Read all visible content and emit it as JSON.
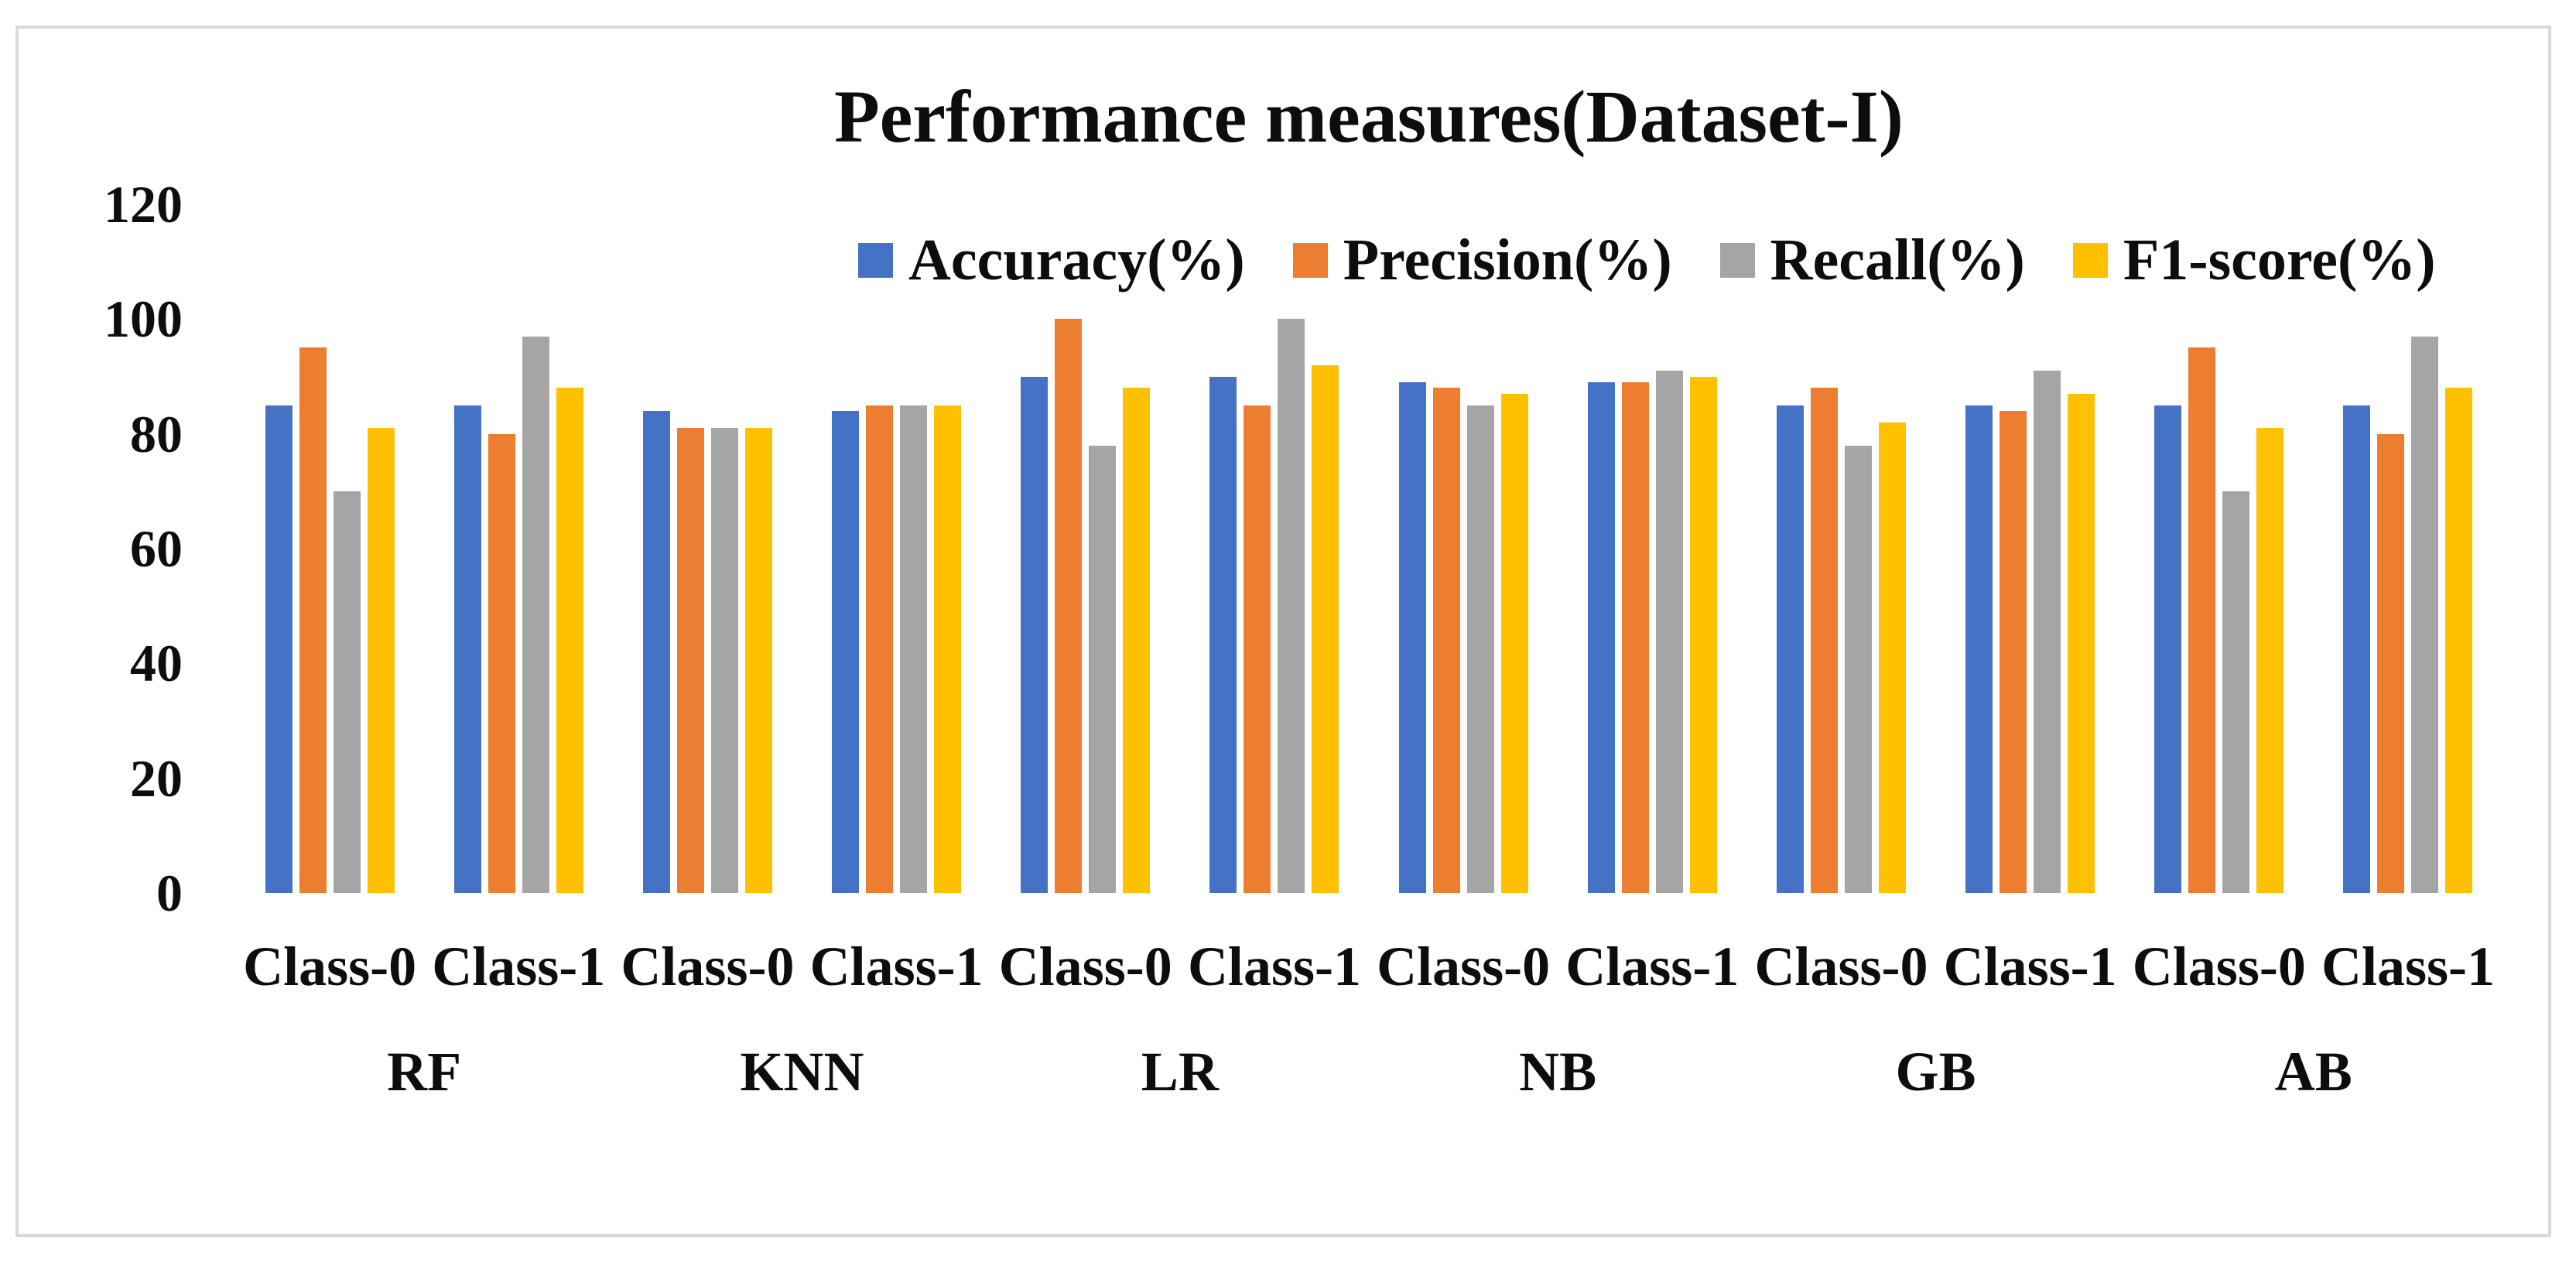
{
  "figure": {
    "background": "#ffffff",
    "border_color": "#d9d9d9"
  },
  "chart_data": {
    "type": "bar",
    "title": "Performance measures(Dataset-I)",
    "xlabel": "",
    "ylabel": "",
    "ylim": [
      0,
      120
    ],
    "y_ticks": [
      0,
      20,
      40,
      60,
      80,
      100,
      120
    ],
    "grid": false,
    "legend_position": "top-center",
    "algorithms": [
      "RF",
      "KNN",
      "LR",
      "NB",
      "GB",
      "AB"
    ],
    "class_labels": [
      "Class-0",
      "Class-1",
      "Class-0",
      "Class-1",
      "Class-0",
      "Class-1",
      "Class-0",
      "Class-1",
      "Class-0",
      "Class-1",
      "Class-0",
      "Class-1"
    ],
    "series": [
      {
        "name": "Accuracy(%)",
        "color": "#4472C4",
        "values": [
          85,
          85,
          84,
          84,
          90,
          90,
          89,
          89,
          85,
          85,
          85,
          85
        ]
      },
      {
        "name": "Precision(%)",
        "color": "#ED7D31",
        "values": [
          95,
          80,
          81,
          85,
          100,
          85,
          88,
          89,
          88,
          84,
          95,
          80
        ]
      },
      {
        "name": "Recall(%)",
        "color": "#A5A5A5",
        "values": [
          70,
          97,
          81,
          85,
          78,
          100,
          85,
          91,
          78,
          91,
          70,
          97
        ]
      },
      {
        "name": "F1-score(%)",
        "color": "#FFC000",
        "values": [
          81,
          88,
          81,
          85,
          88,
          92,
          87,
          90,
          82,
          87,
          81,
          88
        ]
      }
    ]
  }
}
